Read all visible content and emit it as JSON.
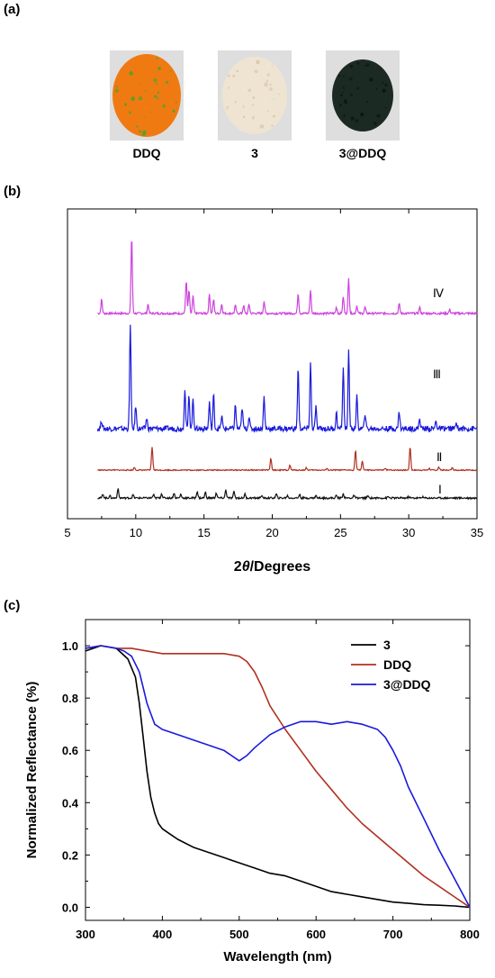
{
  "panels": {
    "a": "(a)",
    "b": "(b)",
    "c": "(c)"
  },
  "photos": [
    {
      "label": "DDQ",
      "color": "#f07a12",
      "speck": "#5aa028"
    },
    {
      "label": "3",
      "color": "#efe4d2",
      "speck": "#d8c9b0"
    },
    {
      "label": "3@DDQ",
      "color": "#1c2a24",
      "speck": "#0d1512"
    }
  ],
  "chart_data": [
    {
      "type": "line",
      "panel": "b",
      "xlabel": "2θ/Degrees",
      "xlabel_prefix": "2",
      "xlabel_italic": "θ",
      "xlabel_suffix": "/Degrees",
      "ylabel": "",
      "xlim": [
        5,
        35
      ],
      "xticks": [
        5,
        10,
        15,
        20,
        25,
        30,
        35
      ],
      "yticks_shown": false,
      "series": [
        {
          "name": "Ⅳ",
          "color": "#cc44dd",
          "peaks": [
            [
              7.5,
              0.18
            ],
            [
              9.7,
              1.0
            ],
            [
              10.9,
              0.12
            ],
            [
              13.7,
              0.42
            ],
            [
              13.9,
              0.3
            ],
            [
              14.2,
              0.22
            ],
            [
              15.4,
              0.25
            ],
            [
              15.7,
              0.18
            ],
            [
              16.3,
              0.12
            ],
            [
              17.3,
              0.1
            ],
            [
              17.9,
              0.1
            ],
            [
              18.3,
              0.12
            ],
            [
              19.4,
              0.16
            ],
            [
              21.9,
              0.26
            ],
            [
              22.8,
              0.3
            ],
            [
              24.7,
              0.08
            ],
            [
              25.2,
              0.22
            ],
            [
              25.6,
              0.45
            ],
            [
              26.2,
              0.1
            ],
            [
              26.8,
              0.08
            ],
            [
              29.3,
              0.12
            ],
            [
              30.8,
              0.08
            ],
            [
              33.0,
              0.05
            ]
          ]
        },
        {
          "name": "Ⅲ",
          "color": "#1a1adc",
          "peaks": [
            [
              7.5,
              0.08
            ],
            [
              9.6,
              1.0
            ],
            [
              10.0,
              0.22
            ],
            [
              10.8,
              0.1
            ],
            [
              13.6,
              0.38
            ],
            [
              13.9,
              0.32
            ],
            [
              14.2,
              0.28
            ],
            [
              15.4,
              0.25
            ],
            [
              15.7,
              0.32
            ],
            [
              16.3,
              0.12
            ],
            [
              17.3,
              0.22
            ],
            [
              17.8,
              0.2
            ],
            [
              18.3,
              0.12
            ],
            [
              19.4,
              0.3
            ],
            [
              21.9,
              0.58
            ],
            [
              22.8,
              0.62
            ],
            [
              23.2,
              0.2
            ],
            [
              24.7,
              0.15
            ],
            [
              25.2,
              0.58
            ],
            [
              25.6,
              0.72
            ],
            [
              26.2,
              0.3
            ],
            [
              26.8,
              0.15
            ],
            [
              29.3,
              0.16
            ],
            [
              30.8,
              0.1
            ],
            [
              32.0,
              0.08
            ],
            [
              33.5,
              0.06
            ]
          ]
        },
        {
          "name": "Ⅱ",
          "color": "#b03020",
          "peaks": [
            [
              9.9,
              0.12
            ],
            [
              11.2,
              1.0
            ],
            [
              19.9,
              0.5
            ],
            [
              21.3,
              0.2
            ],
            [
              22.5,
              0.1
            ],
            [
              24.0,
              0.06
            ],
            [
              26.1,
              0.85
            ],
            [
              26.6,
              0.4
            ],
            [
              28.3,
              0.08
            ],
            [
              30.1,
              1.0
            ],
            [
              31.5,
              0.08
            ],
            [
              32.2,
              0.12
            ],
            [
              33.2,
              0.12
            ]
          ]
        },
        {
          "name": "Ⅰ",
          "color": "#111111",
          "peaks": [
            [
              6.2,
              0.22
            ],
            [
              7.6,
              0.32
            ],
            [
              8.1,
              0.18
            ],
            [
              8.7,
              0.75
            ],
            [
              9.8,
              0.25
            ],
            [
              11.3,
              0.25
            ],
            [
              11.9,
              0.35
            ],
            [
              12.8,
              0.4
            ],
            [
              13.3,
              0.3
            ],
            [
              14.5,
              0.55
            ],
            [
              15.1,
              0.45
            ],
            [
              15.9,
              0.4
            ],
            [
              16.6,
              0.65
            ],
            [
              17.2,
              0.5
            ],
            [
              18.0,
              0.3
            ],
            [
              19.2,
              0.2
            ],
            [
              20.3,
              0.3
            ],
            [
              21.1,
              0.2
            ],
            [
              22.0,
              0.3
            ],
            [
              23.2,
              0.2
            ],
            [
              24.7,
              0.2
            ],
            [
              25.2,
              0.35
            ],
            [
              26.0,
              0.2
            ],
            [
              27.0,
              0.15
            ],
            [
              28.5,
              0.1
            ],
            [
              30.0,
              0.1
            ],
            [
              31.0,
              0.1
            ]
          ]
        }
      ]
    },
    {
      "type": "line",
      "panel": "c",
      "xlabel": "Wavelength (nm)",
      "ylabel": "Normalized Reflectance (%)",
      "xlim": [
        300,
        800
      ],
      "ylim": [
        -0.05,
        1.1
      ],
      "xticks": [
        300,
        400,
        500,
        600,
        700,
        800
      ],
      "yticks": [
        0.0,
        0.2,
        0.4,
        0.6,
        0.8,
        1.0
      ],
      "legend_position": "top-right",
      "series": [
        {
          "name": "3",
          "color": "#000000",
          "x": [
            300,
            320,
            340,
            355,
            365,
            370,
            375,
            380,
            385,
            390,
            395,
            400,
            410,
            420,
            440,
            460,
            480,
            500,
            520,
            540,
            560,
            580,
            600,
            620,
            640,
            660,
            680,
            700,
            720,
            740,
            760,
            780,
            800
          ],
          "y": [
            0.98,
            1.0,
            0.99,
            0.95,
            0.88,
            0.78,
            0.65,
            0.52,
            0.42,
            0.36,
            0.32,
            0.3,
            0.28,
            0.26,
            0.23,
            0.21,
            0.19,
            0.17,
            0.15,
            0.13,
            0.12,
            0.1,
            0.08,
            0.06,
            0.05,
            0.04,
            0.03,
            0.02,
            0.015,
            0.01,
            0.008,
            0.005,
            0.0
          ]
        },
        {
          "name": "DDQ",
          "color": "#b03020",
          "x": [
            300,
            320,
            340,
            360,
            380,
            400,
            420,
            440,
            460,
            480,
            500,
            510,
            520,
            530,
            540,
            560,
            580,
            600,
            620,
            640,
            660,
            680,
            700,
            720,
            740,
            760,
            780,
            800
          ],
          "y": [
            0.99,
            1.0,
            0.99,
            0.99,
            0.98,
            0.97,
            0.97,
            0.97,
            0.97,
            0.97,
            0.96,
            0.94,
            0.9,
            0.84,
            0.77,
            0.68,
            0.6,
            0.52,
            0.45,
            0.38,
            0.32,
            0.27,
            0.22,
            0.17,
            0.12,
            0.08,
            0.04,
            0.0
          ]
        },
        {
          "name": "3@DDQ",
          "color": "#1a1adc",
          "x": [
            300,
            320,
            340,
            350,
            360,
            370,
            375,
            380,
            385,
            390,
            400,
            420,
            440,
            460,
            480,
            500,
            510,
            520,
            540,
            560,
            580,
            600,
            620,
            640,
            660,
            680,
            690,
            700,
            710,
            720,
            740,
            760,
            780,
            800
          ],
          "y": [
            0.99,
            1.0,
            0.99,
            0.98,
            0.96,
            0.9,
            0.84,
            0.78,
            0.74,
            0.7,
            0.68,
            0.66,
            0.64,
            0.62,
            0.6,
            0.56,
            0.58,
            0.61,
            0.66,
            0.69,
            0.71,
            0.71,
            0.7,
            0.71,
            0.7,
            0.68,
            0.65,
            0.6,
            0.54,
            0.46,
            0.34,
            0.22,
            0.11,
            0.0
          ]
        }
      ]
    }
  ]
}
